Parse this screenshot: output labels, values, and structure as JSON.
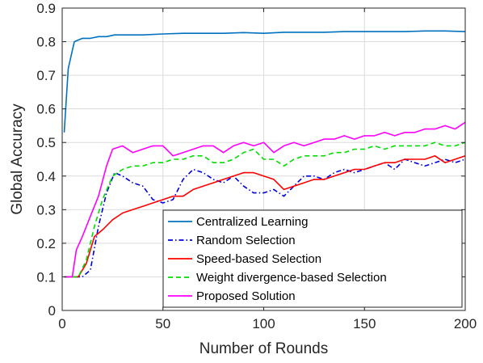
{
  "chart_data": {
    "type": "line",
    "title": "",
    "xlabel": "Number of Rounds",
    "ylabel": "Global Accuracy",
    "xlim": [
      0,
      200
    ],
    "ylim": [
      0,
      0.9
    ],
    "xticks": [
      0,
      50,
      100,
      150,
      200
    ],
    "xtick_labels": [
      "0",
      "50",
      "100",
      "150",
      "200"
    ],
    "yticks": [
      0,
      0.1,
      0.2,
      0.3,
      0.4,
      0.5,
      0.6,
      0.7,
      0.8,
      0.9
    ],
    "ytick_labels": [
      "0",
      "0.1",
      "0.2",
      "0.3",
      "0.4",
      "0.5",
      "0.6",
      "0.7",
      "0.8",
      "0.9"
    ],
    "grid": true,
    "legend_position": "bottom-right",
    "series": [
      {
        "name": "Centralized Learning",
        "color": "#0072BD",
        "dash": "solid",
        "x": [
          1,
          3,
          6,
          8,
          10,
          14,
          18,
          22,
          26,
          30,
          40,
          50,
          60,
          70,
          80,
          90,
          100,
          110,
          120,
          130,
          140,
          150,
          160,
          170,
          180,
          190,
          200
        ],
        "y": [
          0.53,
          0.72,
          0.8,
          0.805,
          0.81,
          0.81,
          0.815,
          0.815,
          0.82,
          0.82,
          0.82,
          0.823,
          0.825,
          0.825,
          0.825,
          0.827,
          0.825,
          0.828,
          0.828,
          0.828,
          0.83,
          0.83,
          0.83,
          0.83,
          0.832,
          0.832,
          0.83
        ]
      },
      {
        "name": "Random Selection",
        "color": "#0000E0",
        "dash": "dashdot",
        "x": [
          1,
          10,
          14,
          18,
          22,
          26,
          30,
          35,
          40,
          45,
          50,
          55,
          60,
          65,
          70,
          75,
          80,
          85,
          90,
          95,
          100,
          105,
          110,
          115,
          120,
          125,
          130,
          135,
          140,
          145,
          150,
          155,
          160,
          165,
          170,
          175,
          180,
          185,
          190,
          195,
          200
        ],
        "y": [
          0.1,
          0.1,
          0.12,
          0.25,
          0.35,
          0.41,
          0.4,
          0.38,
          0.37,
          0.33,
          0.32,
          0.33,
          0.39,
          0.42,
          0.41,
          0.39,
          0.38,
          0.4,
          0.37,
          0.35,
          0.35,
          0.36,
          0.34,
          0.37,
          0.4,
          0.4,
          0.39,
          0.41,
          0.42,
          0.41,
          0.42,
          0.43,
          0.44,
          0.42,
          0.45,
          0.44,
          0.43,
          0.44,
          0.45,
          0.44,
          0.45
        ]
      },
      {
        "name": "Speed-based Selection",
        "color": "#FF0000",
        "dash": "solid",
        "x": [
          1,
          8,
          12,
          16,
          20,
          25,
          30,
          35,
          40,
          45,
          50,
          55,
          60,
          65,
          70,
          75,
          80,
          85,
          90,
          95,
          100,
          105,
          110,
          115,
          120,
          125,
          130,
          135,
          140,
          145,
          150,
          155,
          160,
          165,
          170,
          175,
          180,
          185,
          190,
          195,
          200
        ],
        "y": [
          0.1,
          0.1,
          0.14,
          0.22,
          0.24,
          0.27,
          0.29,
          0.3,
          0.31,
          0.32,
          0.33,
          0.34,
          0.34,
          0.36,
          0.37,
          0.38,
          0.39,
          0.4,
          0.41,
          0.41,
          0.4,
          0.39,
          0.36,
          0.37,
          0.38,
          0.39,
          0.39,
          0.4,
          0.41,
          0.42,
          0.42,
          0.43,
          0.44,
          0.44,
          0.45,
          0.45,
          0.45,
          0.46,
          0.44,
          0.45,
          0.46
        ]
      },
      {
        "name": "Weight divergence-based Selection",
        "color": "#00DD00",
        "dash": "dashed",
        "x": [
          1,
          8,
          12,
          16,
          20,
          25,
          30,
          35,
          40,
          45,
          50,
          55,
          60,
          65,
          70,
          75,
          80,
          85,
          90,
          95,
          100,
          105,
          110,
          115,
          120,
          125,
          130,
          135,
          140,
          145,
          150,
          155,
          160,
          165,
          170,
          175,
          180,
          185,
          190,
          195,
          200
        ],
        "y": [
          0.1,
          0.1,
          0.15,
          0.25,
          0.33,
          0.4,
          0.42,
          0.43,
          0.43,
          0.44,
          0.44,
          0.45,
          0.45,
          0.46,
          0.46,
          0.44,
          0.44,
          0.45,
          0.47,
          0.48,
          0.45,
          0.45,
          0.43,
          0.45,
          0.46,
          0.46,
          0.46,
          0.47,
          0.47,
          0.48,
          0.48,
          0.49,
          0.48,
          0.49,
          0.49,
          0.49,
          0.49,
          0.5,
          0.49,
          0.49,
          0.5
        ]
      },
      {
        "name": "Proposed Solution",
        "color": "#FF00FF",
        "dash": "solid",
        "x": [
          1,
          5,
          7,
          10,
          14,
          18,
          22,
          25,
          30,
          35,
          40,
          45,
          50,
          55,
          60,
          65,
          70,
          75,
          80,
          85,
          90,
          95,
          100,
          105,
          110,
          115,
          120,
          125,
          130,
          135,
          140,
          145,
          150,
          155,
          160,
          165,
          170,
          175,
          180,
          185,
          190,
          195,
          200
        ],
        "y": [
          0.1,
          0.1,
          0.18,
          0.22,
          0.28,
          0.34,
          0.43,
          0.48,
          0.49,
          0.47,
          0.48,
          0.49,
          0.49,
          0.46,
          0.47,
          0.48,
          0.49,
          0.49,
          0.47,
          0.49,
          0.5,
          0.49,
          0.5,
          0.47,
          0.49,
          0.5,
          0.49,
          0.5,
          0.51,
          0.51,
          0.52,
          0.51,
          0.52,
          0.52,
          0.53,
          0.52,
          0.53,
          0.53,
          0.54,
          0.54,
          0.55,
          0.54,
          0.56
        ]
      }
    ]
  }
}
